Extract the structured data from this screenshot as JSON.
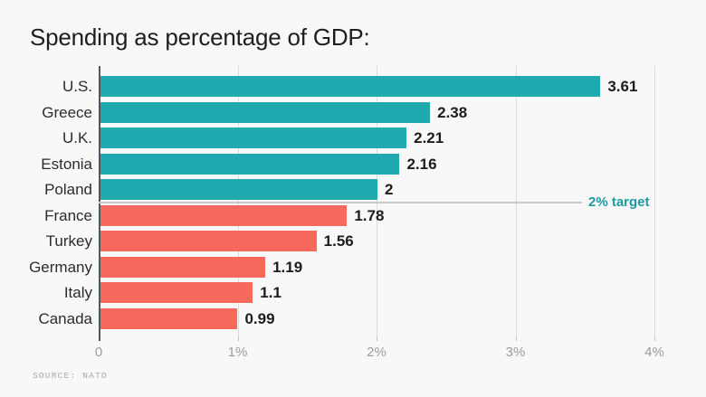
{
  "chart_data": {
    "type": "bar",
    "orientation": "horizontal",
    "title": "Spending as percentage of GDP:",
    "categories": [
      "U.S.",
      "Greece",
      "U.K.",
      "Estonia",
      "Poland",
      "France",
      "Turkey",
      "Germany",
      "Italy",
      "Canada"
    ],
    "values": [
      3.61,
      2.38,
      2.21,
      2.16,
      2,
      1.78,
      1.56,
      1.19,
      1.1,
      0.99
    ],
    "value_labels": [
      "3.61",
      "2.38",
      "2.21",
      "2.16",
      "2",
      "1.78",
      "1.56",
      "1.19",
      "1.1",
      "0.99"
    ],
    "xlim": [
      0,
      4
    ],
    "x_ticks": [
      {
        "value": 0,
        "label": "0"
      },
      {
        "value": 1,
        "label": "1%"
      },
      {
        "value": 2,
        "label": "2%"
      },
      {
        "value": 3,
        "label": "3%"
      },
      {
        "value": 4,
        "label": "4%"
      }
    ],
    "grid": true,
    "legend": false,
    "target_line": {
      "value": 2,
      "label": "2% target",
      "note": "horizontal divider drawn between countries at-or-above 2% and those below"
    },
    "colors": {
      "above_target": "#21a9b0",
      "below_target": "#f7695c",
      "target_label": "#1b9aa1"
    },
    "source": "SOURCE: NATO"
  }
}
